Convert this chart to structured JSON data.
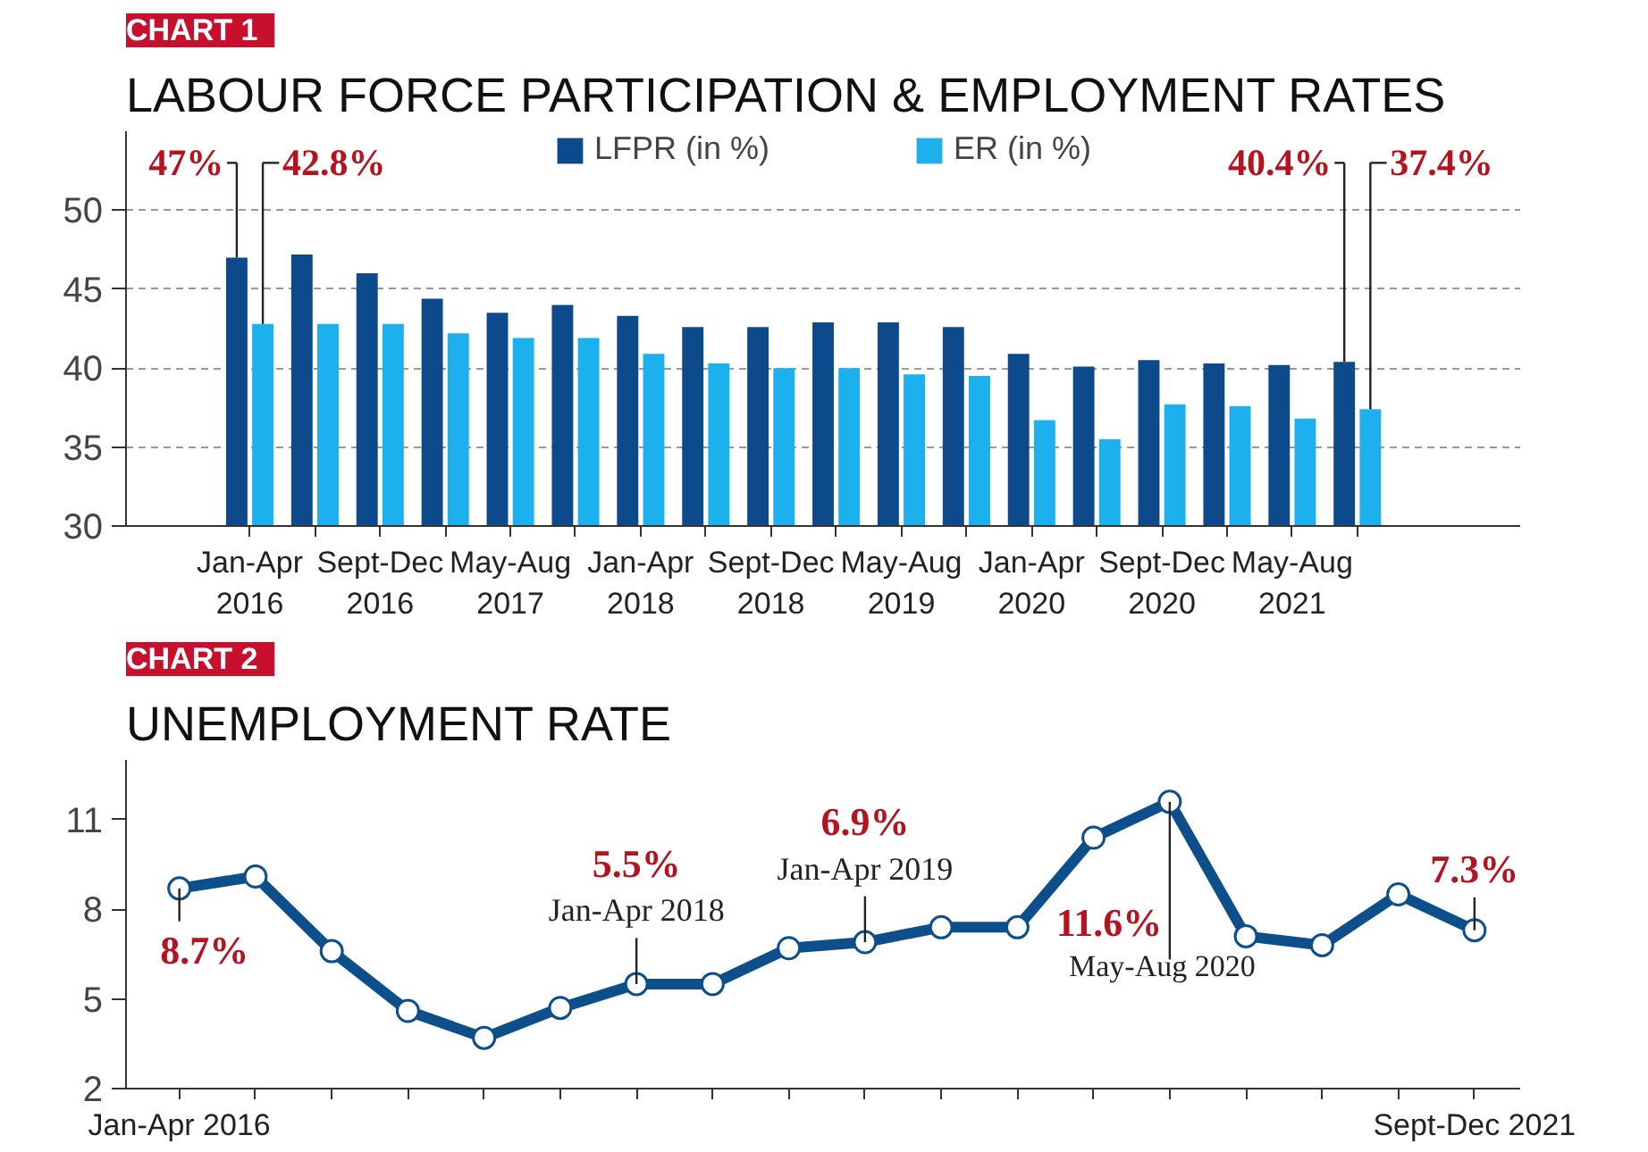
{
  "chart_data": [
    {
      "type": "bar",
      "subtitle": "CHART 1",
      "title": "LABOUR FORCE PARTICIPATION & EMPLOYMENT RATES",
      "categories": [
        "Jan-Apr 2016",
        null,
        "Sept-Dec 2016",
        null,
        "May-Aug 2017",
        null,
        "Jan-Apr 2018",
        null,
        "Sept-Dec 2018",
        null,
        "May-Aug 2019",
        null,
        "Jan-Apr 2020",
        null,
        "Sept-Dec 2020",
        null,
        "May-Aug 2021",
        null
      ],
      "series": [
        {
          "name": "LFPR (in %)",
          "color": "#0d4a8c",
          "values": [
            47,
            47.2,
            46.0,
            44.4,
            43.5,
            44.0,
            43.3,
            42.6,
            42.6,
            42.9,
            42.9,
            42.6,
            40.9,
            40.1,
            40.5,
            40.3,
            40.2,
            40.4
          ],
          "value_labels": [
            "47%",
            null,
            null,
            null,
            null,
            null,
            null,
            null,
            null,
            null,
            null,
            null,
            null,
            null,
            null,
            null,
            null,
            "40.4%"
          ]
        },
        {
          "name": "ER (in %)",
          "color": "#1cb0ee",
          "values": [
            42.8,
            42.8,
            42.8,
            42.2,
            41.9,
            41.9,
            40.9,
            40.3,
            40.0,
            40.0,
            39.6,
            39.5,
            36.7,
            35.5,
            37.7,
            37.6,
            36.8,
            37.4
          ],
          "value_labels": [
            "42.8%",
            null,
            null,
            null,
            null,
            null,
            null,
            null,
            null,
            null,
            null,
            null,
            null,
            null,
            null,
            null,
            null,
            "37.4%"
          ]
        }
      ],
      "ylim": [
        30,
        55
      ],
      "yticks": [
        30,
        35,
        40,
        45,
        50
      ],
      "grid": "y",
      "legend": "top"
    },
    {
      "type": "line",
      "subtitle": "CHART 2",
      "title": "UNEMPLOYMENT RATE",
      "categories": [
        "Jan-Apr 2016",
        null,
        null,
        null,
        null,
        null,
        null,
        null,
        null,
        null,
        null,
        null,
        null,
        null,
        null,
        null,
        null,
        "Sept-Dec 2021"
      ],
      "series": [
        {
          "color": "#0d4f8b",
          "values": [
            8.7,
            9.1,
            6.6,
            4.6,
            3.7,
            4.7,
            5.5,
            5.5,
            6.7,
            6.9,
            7.4,
            7.4,
            10.4,
            11.6,
            7.1,
            6.8,
            8.5,
            7.3
          ],
          "value_labels": [
            "8.7%",
            null,
            null,
            null,
            null,
            null,
            "5.5%",
            null,
            null,
            "6.9%",
            null,
            null,
            null,
            "11.6%",
            null,
            null,
            null,
            "7.3%"
          ]
        }
      ],
      "annotations": [
        {
          "text": "Jan-Apr 2018",
          "y": 5.5
        },
        {
          "text": "Jan-Apr 2019",
          "y": 6.9
        },
        {
          "text": "May-Aug 2020",
          "y": 11.6
        }
      ],
      "ylim": [
        2,
        13
      ],
      "yticks": [
        2,
        5,
        8,
        11
      ],
      "grid": false,
      "marker": "circle",
      "line_style": "solid"
    }
  ]
}
